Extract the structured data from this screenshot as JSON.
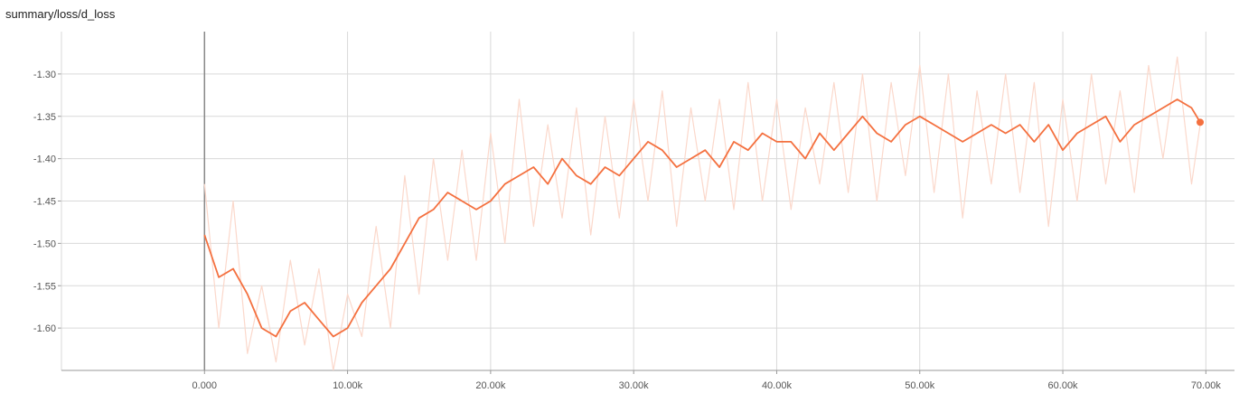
{
  "title": "summary/loss/d_loss",
  "colors": {
    "smoothed": "#f4703f",
    "raw": "#fbd8cb",
    "grid": "#d9d9d9",
    "axis": "#999999",
    "zero_line": "#888888"
  },
  "chart_data": {
    "type": "line",
    "title": "summary/loss/d_loss",
    "xlim": [
      -10000,
      72000
    ],
    "ylim": [
      -1.65,
      -1.25
    ],
    "x_ticks": [
      0,
      10000,
      20000,
      30000,
      40000,
      50000,
      60000,
      70000
    ],
    "x_tick_labels": [
      "0.000",
      "10.00k",
      "20.00k",
      "30.00k",
      "40.00k",
      "50.00k",
      "60.00k",
      "70.00k"
    ],
    "y_ticks": [
      -1.3,
      -1.35,
      -1.4,
      -1.45,
      -1.5,
      -1.55,
      -1.6
    ],
    "y_tick_labels": [
      "-1.30",
      "-1.35",
      "-1.40",
      "-1.45",
      "-1.50",
      "-1.55",
      "-1.60"
    ],
    "grid": true,
    "series": [
      {
        "style": "smoothed",
        "x": [
          0,
          1000,
          2000,
          3000,
          4000,
          5000,
          6000,
          7000,
          8000,
          9000,
          10000,
          11000,
          12000,
          13000,
          14000,
          15000,
          16000,
          17000,
          18000,
          19000,
          20000,
          21000,
          22000,
          23000,
          24000,
          25000,
          26000,
          27000,
          28000,
          29000,
          30000,
          31000,
          32000,
          33000,
          34000,
          35000,
          36000,
          37000,
          38000,
          39000,
          40000,
          41000,
          42000,
          43000,
          44000,
          45000,
          46000,
          47000,
          48000,
          49000,
          50000,
          51000,
          52000,
          53000,
          54000,
          55000,
          56000,
          57000,
          58000,
          59000,
          60000,
          61000,
          62000,
          63000,
          64000,
          65000,
          66000,
          67000,
          68000,
          69000,
          69600
        ],
        "y": [
          -1.49,
          -1.54,
          -1.53,
          -1.56,
          -1.6,
          -1.61,
          -1.58,
          -1.57,
          -1.59,
          -1.61,
          -1.6,
          -1.57,
          -1.55,
          -1.53,
          -1.5,
          -1.47,
          -1.46,
          -1.44,
          -1.45,
          -1.46,
          -1.45,
          -1.43,
          -1.42,
          -1.41,
          -1.43,
          -1.4,
          -1.42,
          -1.43,
          -1.41,
          -1.42,
          -1.4,
          -1.38,
          -1.39,
          -1.41,
          -1.4,
          -1.39,
          -1.41,
          -1.38,
          -1.39,
          -1.37,
          -1.38,
          -1.38,
          -1.4,
          -1.37,
          -1.39,
          -1.37,
          -1.35,
          -1.37,
          -1.38,
          -1.36,
          -1.35,
          -1.36,
          -1.37,
          -1.38,
          -1.37,
          -1.36,
          -1.37,
          -1.36,
          -1.38,
          -1.36,
          -1.39,
          -1.37,
          -1.36,
          -1.35,
          -1.38,
          -1.36,
          -1.35,
          -1.34,
          -1.33,
          -1.34,
          -1.357
        ]
      },
      {
        "style": "raw",
        "x": [
          0,
          1000,
          2000,
          3000,
          4000,
          5000,
          6000,
          7000,
          8000,
          9000,
          10000,
          11000,
          12000,
          13000,
          14000,
          15000,
          16000,
          17000,
          18000,
          19000,
          20000,
          21000,
          22000,
          23000,
          24000,
          25000,
          26000,
          27000,
          28000,
          29000,
          30000,
          31000,
          32000,
          33000,
          34000,
          35000,
          36000,
          37000,
          38000,
          39000,
          40000,
          41000,
          42000,
          43000,
          44000,
          45000,
          46000,
          47000,
          48000,
          49000,
          50000,
          51000,
          52000,
          53000,
          54000,
          55000,
          56000,
          57000,
          58000,
          59000,
          60000,
          61000,
          62000,
          63000,
          64000,
          65000,
          66000,
          67000,
          68000,
          69000,
          69600
        ],
        "y": [
          -1.43,
          -1.6,
          -1.45,
          -1.63,
          -1.55,
          -1.64,
          -1.52,
          -1.62,
          -1.53,
          -1.65,
          -1.56,
          -1.61,
          -1.48,
          -1.6,
          -1.42,
          -1.56,
          -1.4,
          -1.52,
          -1.39,
          -1.52,
          -1.37,
          -1.5,
          -1.33,
          -1.48,
          -1.36,
          -1.47,
          -1.34,
          -1.49,
          -1.35,
          -1.47,
          -1.33,
          -1.45,
          -1.32,
          -1.48,
          -1.34,
          -1.45,
          -1.33,
          -1.46,
          -1.31,
          -1.45,
          -1.33,
          -1.46,
          -1.34,
          -1.43,
          -1.31,
          -1.44,
          -1.3,
          -1.45,
          -1.31,
          -1.42,
          -1.29,
          -1.44,
          -1.3,
          -1.47,
          -1.32,
          -1.43,
          -1.3,
          -1.44,
          -1.31,
          -1.48,
          -1.33,
          -1.45,
          -1.3,
          -1.43,
          -1.32,
          -1.44,
          -1.29,
          -1.4,
          -1.28,
          -1.43,
          -1.36
        ]
      }
    ]
  }
}
